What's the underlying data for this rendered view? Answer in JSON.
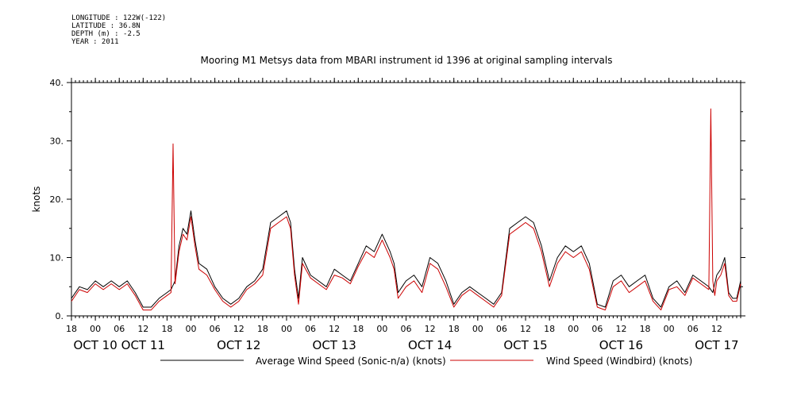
{
  "meta": {
    "longitude": "LONGITUDE : 122W(-122)",
    "latitude": "LATITUDE : 36.8N",
    "depth": "DEPTH (m) : -2.5",
    "year": "YEAR : 2011"
  },
  "chart_data": {
    "type": "line",
    "title": "Mooring M1 Metsys data from MBARI instrument id 1396 at original sampling intervals",
    "ylabel": "knots",
    "xlabel": "",
    "ylim": [
      0,
      40
    ],
    "yticks": [
      "0.",
      "10.",
      "20.",
      "30.",
      "40."
    ],
    "xlim_hours": [
      -6,
      162
    ],
    "xtick_labels": [
      "18",
      "00",
      "06",
      "12",
      "18",
      "00",
      "06",
      "12",
      "18",
      "00",
      "06",
      "12",
      "18",
      "00",
      "06",
      "12",
      "18",
      "00",
      "06",
      "12",
      "18",
      "00",
      "06",
      "12",
      "18",
      "00",
      "06",
      "12"
    ],
    "date_labels": [
      "OCT 10",
      "OCT 11",
      "OCT 12",
      "OCT 13",
      "OCT 14",
      "OCT 15",
      "OCT 16",
      "OCT 17"
    ],
    "date_label_hours": [
      0,
      12,
      36,
      60,
      84,
      108,
      132,
      156
    ],
    "grid": false,
    "legend": "bottom",
    "series": [
      {
        "name": "Average Wind Speed (Sonic-n/a) (knots)",
        "color": "#000000",
        "x": [
          -6,
          -4,
          -2,
          0,
          2,
          4,
          6,
          8,
          10,
          12,
          14,
          16,
          18,
          19,
          20,
          21,
          22,
          23,
          24,
          25,
          26,
          28,
          30,
          32,
          34,
          36,
          38,
          40,
          42,
          44,
          46,
          48,
          49,
          50,
          51,
          52,
          54,
          56,
          58,
          60,
          62,
          64,
          66,
          68,
          70,
          72,
          74,
          75,
          76,
          78,
          80,
          82,
          84,
          86,
          88,
          90,
          92,
          94,
          96,
          98,
          100,
          102,
          104,
          106,
          108,
          110,
          112,
          114,
          116,
          118,
          120,
          122,
          124,
          126,
          128,
          130,
          132,
          134,
          136,
          138,
          140,
          142,
          144,
          146,
          148,
          150,
          152,
          154,
          155,
          156,
          157,
          158,
          159,
          160,
          161,
          162
        ],
        "y": [
          3,
          5,
          4.5,
          6,
          5,
          6,
          5,
          6,
          4,
          1.5,
          1.5,
          3,
          4,
          4.5,
          6,
          12,
          15,
          14,
          18,
          13,
          9,
          8,
          5,
          3,
          2,
          3,
          5,
          6,
          8,
          16,
          17,
          18,
          16,
          8,
          3,
          10,
          7,
          6,
          5,
          8,
          7,
          6,
          9,
          12,
          11,
          14,
          11,
          9,
          4,
          6,
          7,
          5,
          10,
          9,
          6,
          2,
          4,
          5,
          4,
          3,
          2,
          4,
          15,
          16,
          17,
          16,
          12,
          6,
          10,
          12,
          11,
          12,
          9,
          2,
          1.5,
          6,
          7,
          5,
          6,
          7,
          3,
          1.5,
          5,
          6,
          4,
          7,
          6,
          5,
          4,
          7,
          8,
          10,
          4,
          3,
          3,
          6
        ]
      },
      {
        "name": "Wind Speed (Windbird) (knots)",
        "color": "#cc0000",
        "x": [
          -6,
          -4,
          -2,
          0,
          2,
          4,
          6,
          8,
          10,
          12,
          14,
          16,
          18,
          19,
          19.5,
          20,
          21,
          22,
          23,
          24,
          25,
          26,
          28,
          30,
          32,
          34,
          36,
          38,
          40,
          42,
          44,
          46,
          48,
          49,
          50,
          51,
          52,
          54,
          56,
          58,
          60,
          62,
          64,
          66,
          68,
          70,
          72,
          74,
          75,
          76,
          78,
          80,
          82,
          84,
          86,
          88,
          90,
          92,
          94,
          96,
          98,
          100,
          102,
          104,
          106,
          108,
          110,
          112,
          114,
          116,
          118,
          120,
          122,
          124,
          126,
          128,
          130,
          132,
          134,
          136,
          138,
          140,
          142,
          144,
          146,
          148,
          150,
          152,
          154,
          154.5,
          155,
          155.5,
          156,
          157,
          158,
          159,
          160,
          161,
          162
        ],
        "y": [
          2.5,
          4.5,
          4,
          5.5,
          4.5,
          5.5,
          4.5,
          5.5,
          3.5,
          1,
          1,
          2.5,
          3.5,
          4,
          29.5,
          5.5,
          11,
          14,
          13,
          17,
          12,
          8,
          7,
          4.5,
          2.5,
          1.5,
          2.5,
          4.5,
          5.5,
          7,
          15,
          16,
          17,
          15,
          7,
          2,
          9,
          6.5,
          5.5,
          4.5,
          7,
          6.5,
          5.5,
          8.5,
          11,
          10,
          13,
          10,
          8,
          3,
          5,
          6,
          4,
          9,
          8,
          5,
          1.5,
          3.5,
          4.5,
          3.5,
          2.5,
          1.5,
          3.5,
          14,
          15,
          16,
          15,
          11,
          5,
          9,
          11,
          10,
          11,
          8,
          1.5,
          1,
          5,
          6,
          4,
          5,
          6,
          2.5,
          1,
          4.5,
          5,
          3.5,
          6.5,
          5.5,
          4.5,
          35.5,
          6,
          3.5,
          6,
          7,
          9,
          3.5,
          2.5,
          2.5,
          5.5
        ]
      }
    ]
  }
}
